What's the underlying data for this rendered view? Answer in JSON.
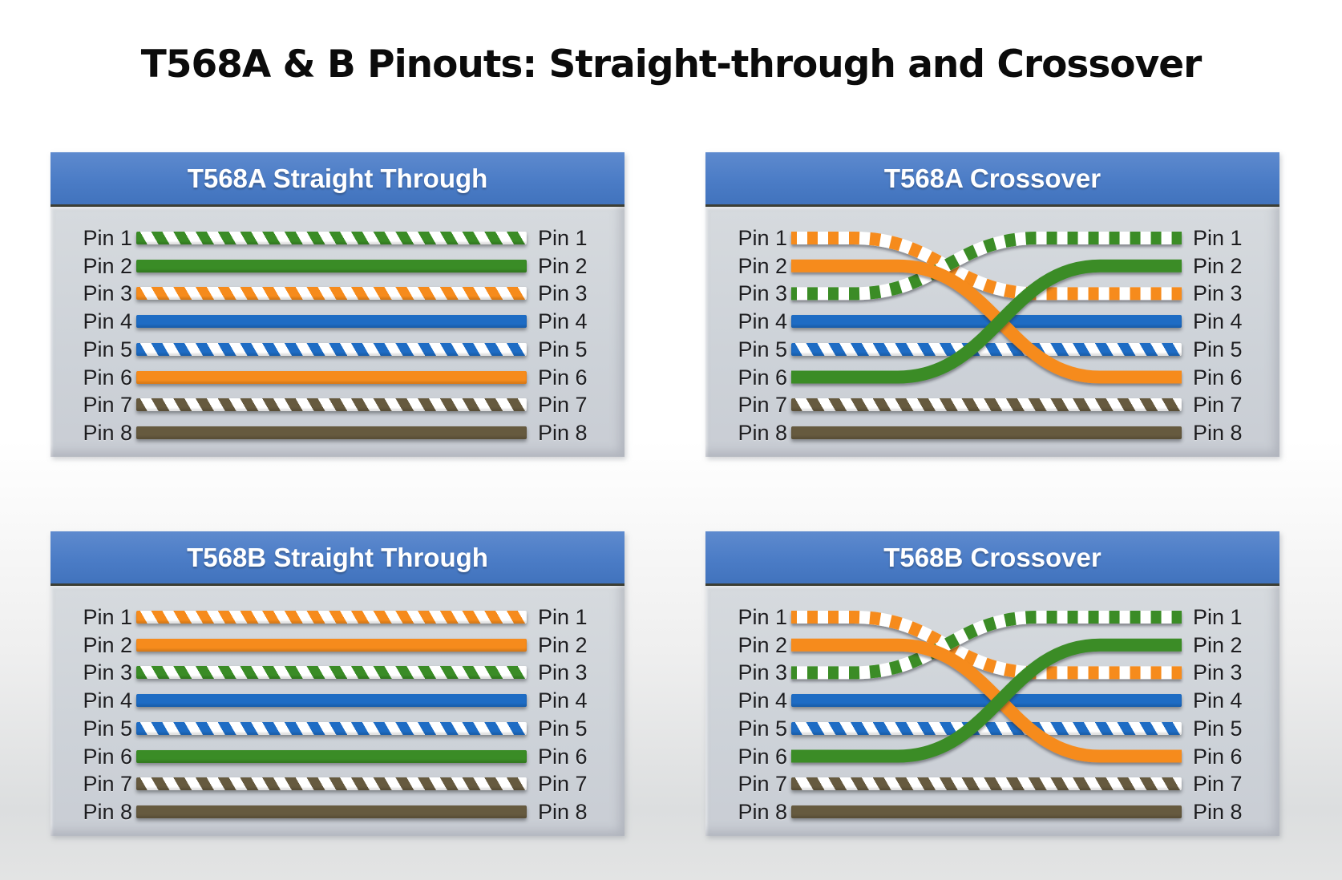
{
  "title": "T568A & B Pinouts: Straight-through and Crossover",
  "pins": [
    "Pin 1",
    "Pin 2",
    "Pin 3",
    "Pin 4",
    "Pin 5",
    "Pin 6",
    "Pin 7",
    "Pin 8"
  ],
  "colors": {
    "header_blue": "#4b7cc6",
    "panel_gray": "#cdd2d8",
    "stripe_white": "#ffffff",
    "green": "#3a8c26",
    "orange": "#f68b1c",
    "blue": "#1e6cc4",
    "brown": "#665a3f"
  },
  "panels": [
    {
      "id": "t568a-straight",
      "title": "T568A Straight Through",
      "type": "straight",
      "wires": [
        {
          "from": 1,
          "to": 1,
          "color": "green",
          "striped": true
        },
        {
          "from": 2,
          "to": 2,
          "color": "green",
          "striped": false
        },
        {
          "from": 3,
          "to": 3,
          "color": "orange",
          "striped": true
        },
        {
          "from": 4,
          "to": 4,
          "color": "blue",
          "striped": false
        },
        {
          "from": 5,
          "to": 5,
          "color": "blue",
          "striped": true
        },
        {
          "from": 6,
          "to": 6,
          "color": "orange",
          "striped": false
        },
        {
          "from": 7,
          "to": 7,
          "color": "brown",
          "striped": true
        },
        {
          "from": 8,
          "to": 8,
          "color": "brown",
          "striped": false
        }
      ]
    },
    {
      "id": "t568a-crossover",
      "title": "T568A Crossover",
      "type": "crossover",
      "wires": [
        {
          "from": 1,
          "to": 3,
          "color": "orange",
          "striped": true
        },
        {
          "from": 2,
          "to": 6,
          "color": "orange",
          "striped": false
        },
        {
          "from": 3,
          "to": 1,
          "color": "green",
          "striped": true
        },
        {
          "from": 4,
          "to": 4,
          "color": "blue",
          "striped": false
        },
        {
          "from": 5,
          "to": 5,
          "color": "blue",
          "striped": true
        },
        {
          "from": 6,
          "to": 2,
          "color": "green",
          "striped": false
        },
        {
          "from": 7,
          "to": 7,
          "color": "brown",
          "striped": true
        },
        {
          "from": 8,
          "to": 8,
          "color": "brown",
          "striped": false
        }
      ]
    },
    {
      "id": "t568b-straight",
      "title": "T568B Straight Through",
      "type": "straight",
      "wires": [
        {
          "from": 1,
          "to": 1,
          "color": "orange",
          "striped": true
        },
        {
          "from": 2,
          "to": 2,
          "color": "orange",
          "striped": false
        },
        {
          "from": 3,
          "to": 3,
          "color": "green",
          "striped": true
        },
        {
          "from": 4,
          "to": 4,
          "color": "blue",
          "striped": false
        },
        {
          "from": 5,
          "to": 5,
          "color": "blue",
          "striped": true
        },
        {
          "from": 6,
          "to": 6,
          "color": "green",
          "striped": false
        },
        {
          "from": 7,
          "to": 7,
          "color": "brown",
          "striped": true
        },
        {
          "from": 8,
          "to": 8,
          "color": "brown",
          "striped": false
        }
      ]
    },
    {
      "id": "t568b-crossover",
      "title": "T568B Crossover",
      "type": "crossover",
      "wires": [
        {
          "from": 1,
          "to": 3,
          "color": "orange",
          "striped": true
        },
        {
          "from": 2,
          "to": 6,
          "color": "orange",
          "striped": false
        },
        {
          "from": 3,
          "to": 1,
          "color": "green",
          "striped": true
        },
        {
          "from": 4,
          "to": 4,
          "color": "blue",
          "striped": false
        },
        {
          "from": 5,
          "to": 5,
          "color": "blue",
          "striped": true
        },
        {
          "from": 6,
          "to": 2,
          "color": "green",
          "striped": false
        },
        {
          "from": 7,
          "to": 7,
          "color": "brown",
          "striped": true
        },
        {
          "from": 8,
          "to": 8,
          "color": "brown",
          "striped": false
        }
      ]
    }
  ]
}
